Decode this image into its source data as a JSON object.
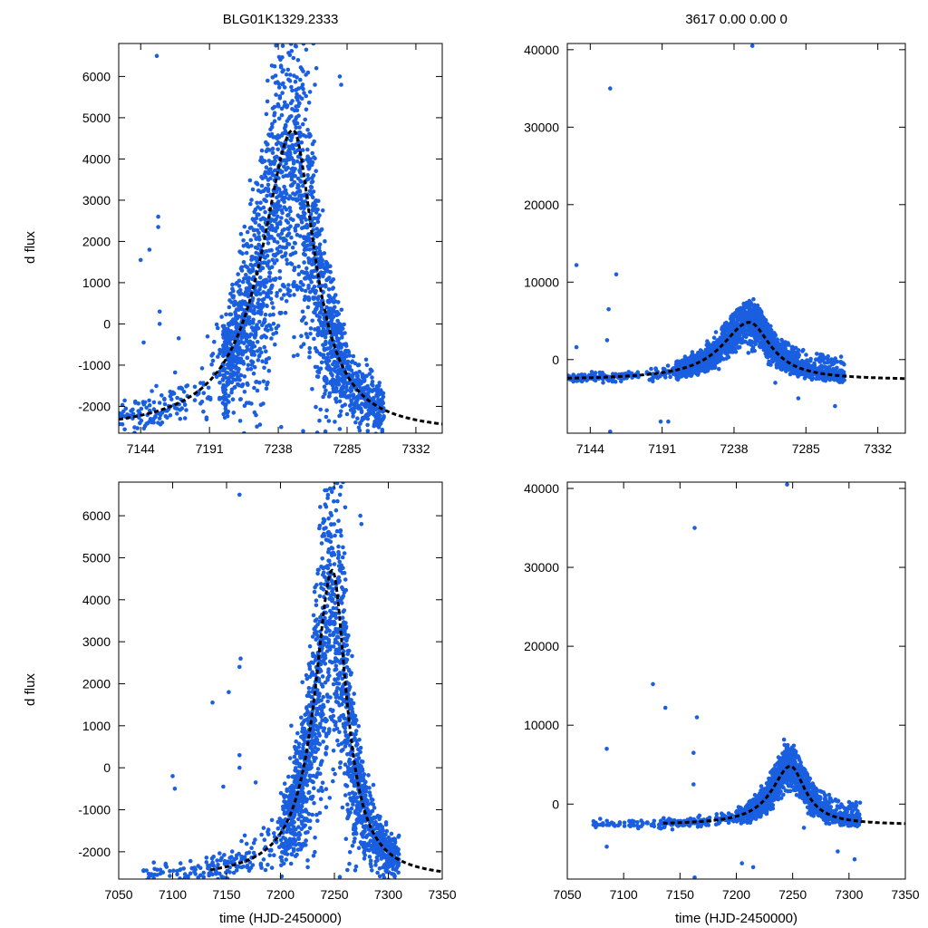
{
  "chart_data": [
    {
      "panel": "top-left",
      "type": "scatter",
      "title": "BLG01K1329.2333",
      "xlabel": "",
      "ylabel": "d flux",
      "xlim": [
        7129,
        7350
      ],
      "ylim": [
        -2650,
        6800
      ],
      "xticks": [
        7144,
        7191,
        7238,
        7285,
        7332
      ],
      "yticks": [
        -2000,
        -1000,
        0,
        1000,
        2000,
        3000,
        4000,
        5000,
        6000
      ],
      "model": {
        "t0": 7248,
        "peak": 4700,
        "base": -2650,
        "width_left": 26,
        "width_right": 18,
        "start": 7129,
        "end": 7350,
        "style": "dashed",
        "color": "#000000"
      },
      "points_color": "#1a5fe0",
      "series": [
        {
          "values": [
            [
              7144,
              1550
            ],
            [
              7146,
              -450
            ],
            [
              7150,
              1800
            ],
            [
              7155,
              6500
            ],
            [
              7156,
              2600
            ],
            [
              7156,
              2350
            ],
            [
              7157,
              300
            ],
            [
              7157,
              0
            ],
            [
              7170,
              -350
            ],
            [
              7262,
              6800
            ],
            [
              7264,
              6200
            ],
            [
              7263,
              5800
            ],
            [
              7255,
              5700
            ],
            [
              7280,
              6000
            ],
            [
              7281,
              5800
            ],
            [
              7255,
              -2600
            ],
            [
              7240,
              -2500
            ],
            [
              7280,
              -2550
            ],
            [
              7300,
              -2000
            ],
            [
              7302,
              -1300
            ],
            [
              7226,
              1000
            ],
            [
              7204,
              -1400
            ]
          ]
        }
      ]
    },
    {
      "panel": "top-right",
      "type": "scatter",
      "title": "3617  0.00  0.00  0",
      "xlabel": "",
      "ylabel": "",
      "xlim": [
        7129,
        7350
      ],
      "ylim": [
        -9500,
        40800
      ],
      "xticks": [
        7144,
        7191,
        7238,
        7285,
        7332
      ],
      "yticks": [
        0,
        10000,
        20000,
        30000,
        40000
      ],
      "model": {
        "t0": 7248,
        "peak": 4800,
        "base": -2650,
        "width_left": 22,
        "width_right": 17,
        "start": 7129,
        "end": 7350,
        "style": "dashed",
        "color": "#000000"
      },
      "points_color": "#1a5fe0",
      "series": [
        {
          "values": [
            [
              7250,
              40500
            ],
            [
              7157,
              35000
            ],
            [
              7135,
              12200
            ],
            [
              7161,
              11000
            ],
            [
              7156,
              6500
            ],
            [
              7155,
              2500
            ],
            [
              7135,
              1600
            ],
            [
              7157,
              -9300
            ],
            [
              7190,
              -8000
            ],
            [
              7195,
              -8000
            ],
            [
              7265,
              -3000
            ],
            [
              7280,
              -5000
            ],
            [
              7304,
              -6000
            ]
          ]
        }
      ]
    },
    {
      "panel": "bottom-left",
      "type": "scatter",
      "title": "",
      "xlabel": "time (HJD-2450000)",
      "ylabel": "d flux",
      "xlim": [
        7050,
        7350
      ],
      "ylim": [
        -2650,
        6800
      ],
      "xticks": [
        7050,
        7100,
        7150,
        7200,
        7250,
        7300,
        7350
      ],
      "yticks": [
        -2000,
        -1000,
        0,
        1000,
        2000,
        3000,
        4000,
        5000,
        6000
      ],
      "model": {
        "t0": 7248,
        "peak": 4700,
        "base": -2650,
        "width_left": 20,
        "width_right": 16,
        "start": 7135,
        "end": 7350,
        "style": "dashed",
        "color": "#000000"
      },
      "points_color": "#1a5fe0",
      "series": [
        {
          "values": [
            [
              7162,
              6500
            ],
            [
              7163,
              2600
            ],
            [
              7162,
              2400
            ],
            [
              7152,
              1800
            ],
            [
              7137,
              1550
            ],
            [
              7100,
              -200
            ],
            [
              7102,
              -500
            ],
            [
              7147,
              -450
            ],
            [
              7177,
              -350
            ],
            [
              7162,
              300
            ],
            [
              7162,
              0
            ],
            [
              7258,
              6800
            ],
            [
              7260,
              6200
            ],
            [
              7274,
              6000
            ],
            [
              7275,
              5800
            ],
            [
              7236,
              5700
            ],
            [
              7247,
              5500
            ],
            [
              7255,
              -2600
            ],
            [
              7290,
              -2500
            ],
            [
              7298,
              -1300
            ],
            [
              7210,
              1000
            ]
          ]
        }
      ]
    },
    {
      "panel": "bottom-right",
      "type": "scatter",
      "title": "",
      "xlabel": "time (HJD-2450000)",
      "ylabel": "",
      "xlim": [
        7050,
        7350
      ],
      "ylim": [
        -9500,
        40800
      ],
      "xticks": [
        7050,
        7100,
        7150,
        7200,
        7250,
        7300,
        7350
      ],
      "yticks": [
        0,
        10000,
        20000,
        30000,
        40000
      ],
      "model": {
        "t0": 7248,
        "peak": 4800,
        "base": -2650,
        "width_left": 20,
        "width_right": 16,
        "start": 7135,
        "end": 7350,
        "style": "dashed",
        "color": "#000000"
      },
      "points_color": "#1a5fe0",
      "series": [
        {
          "values": [
            [
              7245,
              40500
            ],
            [
              7163,
              35000
            ],
            [
              7126,
              15200
            ],
            [
              7137,
              12200
            ],
            [
              7165,
              11000
            ],
            [
              7085,
              7000
            ],
            [
              7162,
              6500
            ],
            [
              7162,
              2500
            ],
            [
              7085,
              -5400
            ],
            [
              7163,
              -9300
            ],
            [
              7205,
              -7500
            ],
            [
              7215,
              -8000
            ],
            [
              7290,
              -6000
            ],
            [
              7305,
              -7000
            ],
            [
              7260,
              -3000
            ]
          ]
        }
      ]
    }
  ]
}
